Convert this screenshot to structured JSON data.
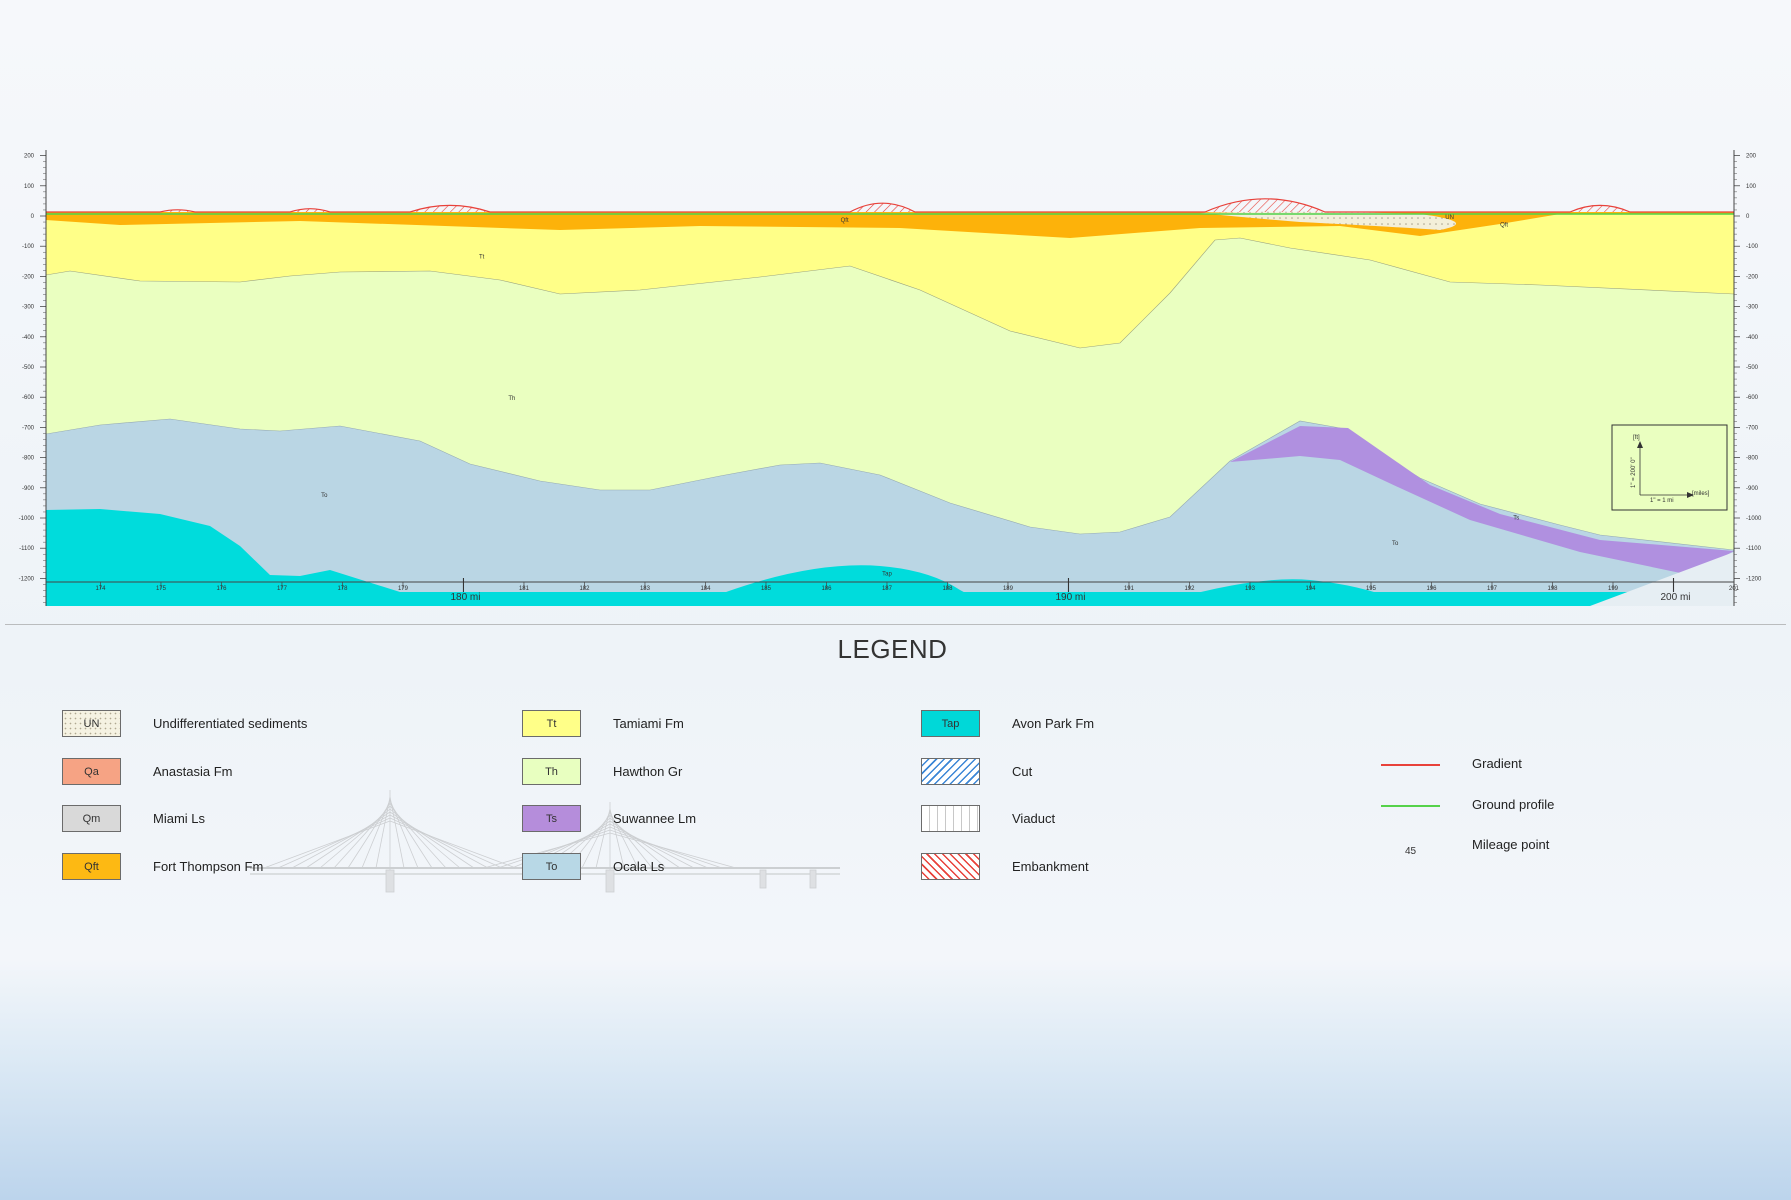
{
  "ticks_ft": [
    200,
    100,
    0,
    -100,
    -200,
    -300,
    -400,
    -500,
    -600,
    -700,
    -800,
    -900,
    -1000,
    -1100,
    -1200
  ],
  "miles": {
    "small": [
      174,
      175,
      176,
      177,
      178,
      179,
      181,
      182,
      183,
      184,
      185,
      186,
      187,
      188,
      189,
      191,
      192,
      193,
      194,
      195,
      196,
      197,
      198,
      199,
      201
    ],
    "major": [
      {
        "m": 180,
        "label": "180  mi"
      },
      {
        "m": 190,
        "label": "190  mi"
      },
      {
        "m": 200,
        "label": "200  mi"
      }
    ]
  },
  "section_labels": [
    {
      "text": "Tt",
      "mile": 180.3,
      "elev": -140
    },
    {
      "text": "Th",
      "mile": 180.8,
      "elev": -610
    },
    {
      "text": "To",
      "mile": 177.7,
      "elev": -930
    },
    {
      "text": "To",
      "mile": 195.4,
      "elev": -1090
    },
    {
      "text": "Ts",
      "mile": 197.4,
      "elev": -1005
    },
    {
      "text": "Tap",
      "mile": 187.0,
      "elev": -1190
    },
    {
      "text": "Qft",
      "mile": 186.3,
      "elev": -20
    },
    {
      "text": "UN",
      "mile": 196.3,
      "elev": -10
    },
    {
      "text": "Qft",
      "mile": 197.2,
      "elev": -35
    }
  ],
  "scale_box": {
    "vertical": "1\" = 200' 0\"",
    "horizontal": "1\" = 1 mi",
    "y_unit": "[ft]",
    "x_unit": "[miles]"
  },
  "legend": {
    "title": "LEGEND",
    "items": [
      {
        "code": "UN",
        "label": "Undifferentiated sediments",
        "color": "#f5f2e2",
        "pattern": "dots"
      },
      {
        "code": "Qa",
        "label": "Anastasia Fm",
        "color": "#f6a384"
      },
      {
        "code": "Qm",
        "label": "Miami Ls",
        "color": "#d9d9d9"
      },
      {
        "code": "Qft",
        "label": "Fort Thompson Fm",
        "color": "#fdb913"
      },
      {
        "code": "Tt",
        "label": "Tamiami Fm",
        "color": "#ffff88"
      },
      {
        "code": "Th",
        "label": "Hawthon Gr",
        "color": "#e8ffc0"
      },
      {
        "code": "Ts",
        "label": "Suwannee Lm",
        "color": "#b58ddb"
      },
      {
        "code": "To",
        "label": "Ocala Ls",
        "color": "#b8d8e6"
      },
      {
        "code": "Tap",
        "label": "Avon Park Fm",
        "color": "#00d8d8"
      },
      {
        "code": "",
        "label": "Cut",
        "color": "#ffffff",
        "pattern": "cut"
      },
      {
        "code": "",
        "label": "Viaduct",
        "color": "#ffffff",
        "pattern": "viaduct"
      },
      {
        "code": "",
        "label": "Embankment",
        "color": "#ffffff",
        "pattern": "embankment"
      }
    ],
    "lines": [
      {
        "label": "Gradient",
        "color": "#e8413a"
      },
      {
        "label": "Ground profile",
        "color": "#55d24a"
      },
      {
        "label": "Mileage point",
        "symbol": "45"
      }
    ]
  },
  "colors": {
    "UN": "#f3efd9",
    "Qft": "#fdb20a",
    "Tt": "#ffff88",
    "Th": "#eaffc0",
    "Ts": "#b090e0",
    "To": "#bad6e4",
    "Tap": "#00dcdc",
    "gradient": "#e8413a",
    "ground": "#4fd24a"
  }
}
